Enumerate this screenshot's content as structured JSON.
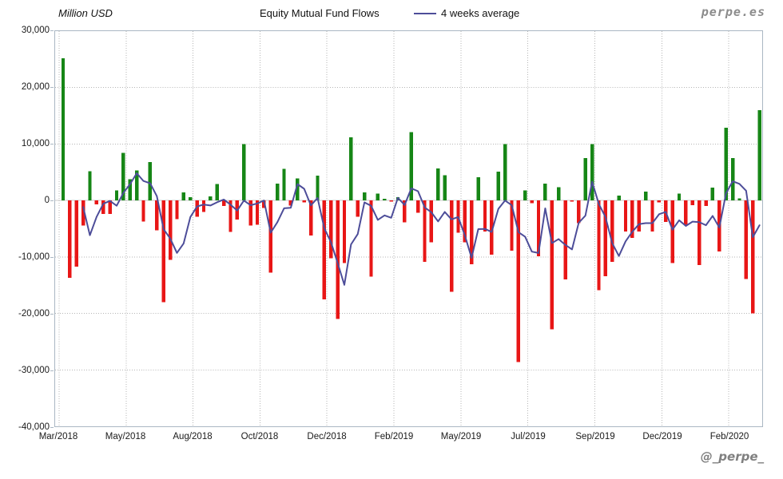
{
  "header": {
    "y_axis_title": "Million USD",
    "title": "Equity Mutual Fund Flows",
    "legend_label": "4 weeks average",
    "watermark_top": "perpe.es",
    "watermark_bottom": "@_perpe_"
  },
  "colors": {
    "positive_bar": "#168616",
    "negative_bar": "#e81616",
    "average_line": "#4d4d99",
    "gridline": "#b5b5b5",
    "zero_line": "#c8c8c8",
    "plot_border": "#aab7c3"
  },
  "chart_data": {
    "type": "bar",
    "title": "Equity Mutual Fund Flows",
    "subtitle": "",
    "unit_label": "Million USD",
    "frequency": "weekly",
    "ylim": [
      -40000,
      30000
    ],
    "y_tick_step": 10000,
    "y_tick_labels": [
      "30,000",
      "20,000",
      "10,000",
      "0",
      "-10,000",
      "-20,000",
      "-30,000",
      "-40,000"
    ],
    "x_tick_labels": [
      "Mar/2018",
      "May/2018",
      "Aug/2018",
      "Oct/2018",
      "Dec/2018",
      "Feb/2019",
      "May/2019",
      "Jul/2019",
      "Sep/2019",
      "Dec/2019",
      "Feb/2020"
    ],
    "grid": true,
    "legend_position": "top",
    "series": [
      {
        "name": "Equity Mutual Fund Flows (weekly, Million USD)",
        "type": "bar",
        "values": [
          25200,
          -13700,
          -11700,
          -4400,
          5200,
          -700,
          -2400,
          -2400,
          1800,
          8400,
          3800,
          5300,
          -3700,
          6800,
          -5300,
          -18000,
          -10500,
          -3300,
          1400,
          600,
          -2900,
          -2000,
          750,
          2900,
          -1000,
          -5600,
          -3400,
          10000,
          -4400,
          -4300,
          -1300,
          -12800,
          3000,
          5600,
          -900,
          3900,
          -300,
          -6200,
          4400,
          -17500,
          -10200,
          -21000,
          -11100,
          11200,
          -2900,
          1450,
          -13500,
          1200,
          300,
          -200,
          600,
          -3900,
          12100,
          -2200,
          -10900,
          -7400,
          5700,
          4500,
          -16200,
          -5700,
          -7400,
          -11300,
          4100,
          -5500,
          -9600,
          5100,
          10000,
          -8900,
          -28600,
          1800,
          -500,
          -9900,
          3000,
          -22800,
          2350,
          -14000,
          -200,
          -4000,
          7500,
          10000,
          -15900,
          -13400,
          -10900,
          850,
          -5500,
          -6600,
          -5500,
          1550,
          -5500,
          -300,
          -3800,
          -11100,
          1200,
          -4300,
          -800,
          -11400,
          -1000,
          2250,
          -9000,
          12900,
          7500,
          400,
          -13900,
          -20000,
          16000
        ]
      },
      {
        "name": "4 weeks average",
        "type": "line",
        "derived": "trailing mean of previous 4 weekly values"
      }
    ]
  }
}
